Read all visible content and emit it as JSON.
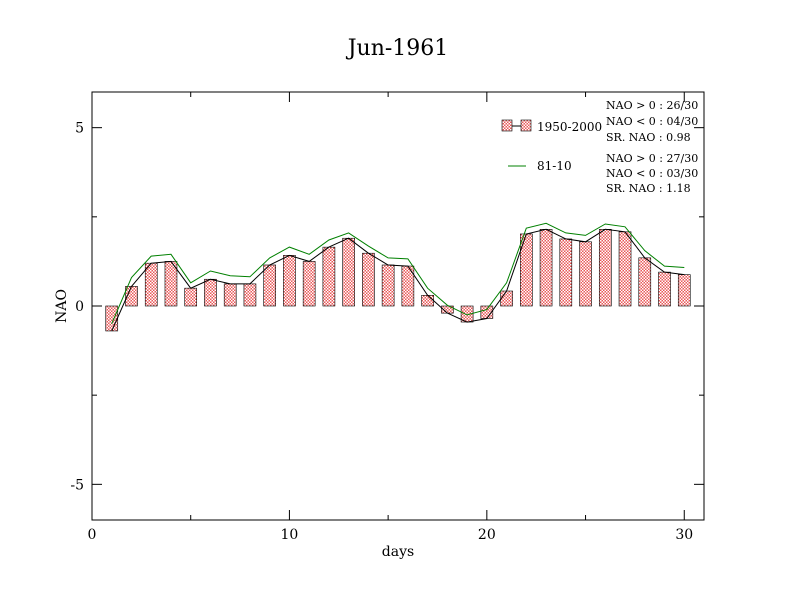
{
  "chart_data": {
    "type": "bar",
    "title": "Jun-1961",
    "xlabel": "days",
    "ylabel": "NAO",
    "xlim": [
      0,
      31
    ],
    "ylim": [
      -6,
      6
    ],
    "x_ticks": [
      0,
      10,
      20,
      30
    ],
    "y_ticks": [
      -5,
      0,
      5
    ],
    "x_tick_labels": [
      "0",
      "10",
      "20",
      "30"
    ],
    "y_tick_labels": [
      "-5",
      "0",
      "5"
    ],
    "grid": false,
    "legend_position": "top-right",
    "series": [
      {
        "name": "1950-2000",
        "kind": "bar",
        "color": "#e85a5a",
        "x": [
          1,
          2,
          3,
          4,
          5,
          6,
          7,
          8,
          9,
          10,
          11,
          12,
          13,
          14,
          15,
          16,
          17,
          18,
          19,
          20,
          21,
          22,
          23,
          24,
          25,
          26,
          27,
          28,
          29,
          30
        ],
        "values": [
          -0.7,
          0.55,
          1.2,
          1.25,
          0.5,
          0.75,
          0.62,
          0.62,
          1.15,
          1.42,
          1.25,
          1.65,
          1.9,
          1.48,
          1.15,
          1.12,
          0.3,
          -0.2,
          -0.45,
          -0.35,
          0.42,
          2.02,
          2.15,
          1.88,
          1.8,
          2.15,
          2.08,
          1.35,
          0.95,
          0.88
        ]
      },
      {
        "name": "81-10",
        "kind": "line",
        "color": "#008000",
        "x": [
          1,
          2,
          3,
          4,
          5,
          6,
          7,
          8,
          9,
          10,
          11,
          12,
          13,
          14,
          15,
          16,
          17,
          18,
          19,
          20,
          21,
          22,
          23,
          24,
          25,
          26,
          27,
          28,
          29,
          30
        ],
        "values": [
          -0.5,
          0.8,
          1.4,
          1.45,
          0.65,
          0.98,
          0.85,
          0.82,
          1.35,
          1.65,
          1.45,
          1.85,
          2.05,
          1.68,
          1.35,
          1.32,
          0.5,
          0.02,
          -0.25,
          -0.1,
          0.65,
          2.18,
          2.32,
          2.05,
          1.98,
          2.3,
          2.22,
          1.55,
          1.12,
          1.08
        ]
      },
      {
        "name": "",
        "kind": "line",
        "color": "#000000",
        "x": [
          1,
          2,
          3,
          4,
          5,
          6,
          7,
          8,
          9,
          10,
          11,
          12,
          13,
          14,
          15,
          16,
          17,
          18,
          19,
          20,
          21,
          22,
          23,
          24,
          25,
          26,
          27,
          28,
          29,
          30
        ],
        "values": [
          -0.7,
          0.55,
          1.2,
          1.25,
          0.5,
          0.75,
          0.62,
          0.62,
          1.15,
          1.42,
          1.25,
          1.65,
          1.9,
          1.48,
          1.15,
          1.12,
          0.3,
          -0.2,
          -0.45,
          -0.35,
          0.42,
          2.02,
          2.15,
          1.88,
          1.8,
          2.15,
          2.08,
          1.35,
          0.95,
          0.88
        ]
      }
    ],
    "annotations": [
      [
        "NAO > 0 : 26/30",
        "NAO < 0 : 04/30",
        "SR. NAO :  0.98"
      ],
      [
        "NAO > 0 : 27/30",
        "NAO < 0 : 03/30",
        "SR. NAO :  1.18"
      ]
    ]
  }
}
